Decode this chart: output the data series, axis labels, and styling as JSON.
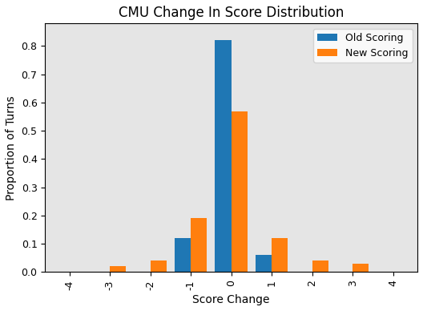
{
  "title": "CMU Change In Score Distribution",
  "xlabel": "Score Change",
  "ylabel": "Proportion of Turns",
  "categories": [
    -4,
    -3,
    -2,
    -1,
    0,
    1,
    2,
    3,
    4
  ],
  "old_scoring": [
    0.0,
    0.0,
    0.0,
    0.12,
    0.82,
    0.06,
    0.0,
    0.0,
    0.0
  ],
  "new_scoring": [
    0.0,
    0.02,
    0.04,
    0.19,
    0.57,
    0.12,
    0.04,
    0.03,
    0.0
  ],
  "old_color": "#1f77b4",
  "new_color": "#ff7f0e",
  "bar_width": 0.4,
  "ylim": [
    0.0,
    0.88
  ],
  "yticks": [
    0.0,
    0.1,
    0.2,
    0.3,
    0.4,
    0.5,
    0.6,
    0.7,
    0.8
  ],
  "legend_labels": [
    "Old Scoring",
    "New Scoring"
  ],
  "axes_facecolor": "#e5e5e5",
  "fig_facecolor": "#ffffff",
  "title_fontsize": 12,
  "label_fontsize": 10,
  "tick_fontsize": 9
}
